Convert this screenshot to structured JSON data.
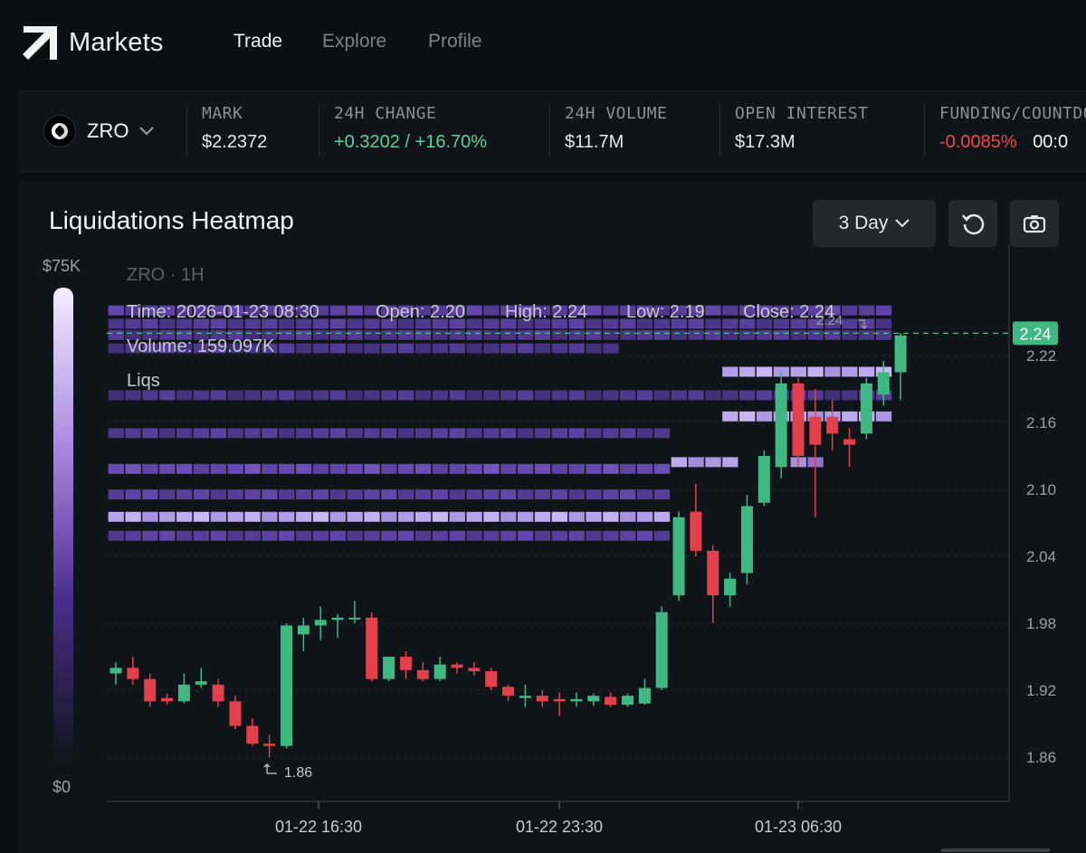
{
  "nav": {
    "brand": "Markets",
    "links": [
      {
        "label": "Trade",
        "active": true
      },
      {
        "label": "Explore",
        "active": false
      },
      {
        "label": "Profile",
        "active": false
      }
    ]
  },
  "ticker": {
    "symbol": "ZRO",
    "stats": [
      {
        "label": "MARK",
        "value": "$2.2372",
        "tone": "neutral"
      },
      {
        "label": "24H CHANGE",
        "value": "+0.3202 / +16.70%",
        "tone": "green"
      },
      {
        "label": "24H VOLUME",
        "value": "$11.7M",
        "tone": "neutral"
      },
      {
        "label": "OPEN INTEREST",
        "value": "$17.3M",
        "tone": "neutral"
      },
      {
        "label": "FUNDING/COUNTDOWN",
        "value": "-0.0085%",
        "value2": "00:0",
        "tone": "red"
      }
    ]
  },
  "panel": {
    "title": "Liquidations Heatmap",
    "range": "3 Day",
    "buttons": [
      "reset-icon",
      "camera-icon"
    ]
  },
  "overlay": {
    "symbol": "ZRO · 1H",
    "time": "Time: 2026-01-23 08:30",
    "open": "Open: 2.20",
    "high": "High: 2.24",
    "low": "Low: 2.19",
    "close": "Close: 2.24",
    "volume": "Volume: 159.097K",
    "liqs": "Liqs"
  },
  "colorbar": {
    "max_label": "$75K",
    "min_label": "$0"
  },
  "colors": {
    "bg": "#0e1417",
    "up": "#3fb884",
    "down": "#e2404c",
    "heat_low": "#2b1f57",
    "heat_high": "#d9c7ff",
    "price_line": "#5fcf9a"
  },
  "chart_data": {
    "type": "heatmap",
    "title": "Liquidations Heatmap",
    "ylim": [
      1.82,
      2.3
    ],
    "yticks": [
      "2.22",
      "2.16",
      "2.10",
      "2.04",
      "1.98",
      "1.92",
      "1.86"
    ],
    "xticks": [
      "01-22 16:30",
      "01-22 23:30",
      "01-23 06:30"
    ],
    "current_price": "2.24",
    "high_marker": "2.24",
    "low_marker": "1.86",
    "candles": [
      {
        "o": 1.935,
        "h": 1.945,
        "l": 1.925,
        "c": 1.94
      },
      {
        "o": 1.94,
        "h": 1.95,
        "l": 1.925,
        "c": 1.93
      },
      {
        "o": 1.93,
        "h": 1.935,
        "l": 1.905,
        "c": 1.91
      },
      {
        "o": 1.913,
        "h": 1.917,
        "l": 1.907,
        "c": 1.91
      },
      {
        "o": 1.91,
        "h": 1.935,
        "l": 1.908,
        "c": 1.925
      },
      {
        "o": 1.925,
        "h": 1.94,
        "l": 1.922,
        "c": 1.928
      },
      {
        "o": 1.925,
        "h": 1.93,
        "l": 1.905,
        "c": 1.91
      },
      {
        "o": 1.91,
        "h": 1.915,
        "l": 1.885,
        "c": 1.888
      },
      {
        "o": 1.888,
        "h": 1.895,
        "l": 1.87,
        "c": 1.872
      },
      {
        "o": 1.872,
        "h": 1.88,
        "l": 1.86,
        "c": 1.87
      },
      {
        "o": 1.87,
        "h": 1.98,
        "l": 1.868,
        "c": 1.978
      },
      {
        "o": 1.97,
        "h": 1.985,
        "l": 1.955,
        "c": 1.978
      },
      {
        "o": 1.978,
        "h": 1.995,
        "l": 1.965,
        "c": 1.983
      },
      {
        "o": 1.983,
        "h": 1.988,
        "l": 1.967,
        "c": 1.985
      },
      {
        "o": 1.985,
        "h": 2.0,
        "l": 1.98,
        "c": 1.985
      },
      {
        "o": 1.985,
        "h": 1.99,
        "l": 1.928,
        "c": 1.93
      },
      {
        "o": 1.93,
        "h": 1.95,
        "l": 1.928,
        "c": 1.95
      },
      {
        "o": 1.95,
        "h": 1.955,
        "l": 1.93,
        "c": 1.938
      },
      {
        "o": 1.938,
        "h": 1.945,
        "l": 1.928,
        "c": 1.93
      },
      {
        "o": 1.93,
        "h": 1.95,
        "l": 1.928,
        "c": 1.943
      },
      {
        "o": 1.943,
        "h": 1.945,
        "l": 1.935,
        "c": 1.94
      },
      {
        "o": 1.94,
        "h": 1.945,
        "l": 1.933,
        "c": 1.937
      },
      {
        "o": 1.937,
        "h": 1.94,
        "l": 1.92,
        "c": 1.923
      },
      {
        "o": 1.923,
        "h": 1.925,
        "l": 1.91,
        "c": 1.915
      },
      {
        "o": 1.913,
        "h": 1.925,
        "l": 1.905,
        "c": 1.915
      },
      {
        "o": 1.915,
        "h": 1.92,
        "l": 1.905,
        "c": 1.91
      },
      {
        "o": 1.912,
        "h": 1.918,
        "l": 1.897,
        "c": 1.91
      },
      {
        "o": 1.91,
        "h": 1.918,
        "l": 1.905,
        "c": 1.912
      },
      {
        "o": 1.91,
        "h": 1.917,
        "l": 1.906,
        "c": 1.915
      },
      {
        "o": 1.914,
        "h": 1.918,
        "l": 1.905,
        "c": 1.907
      },
      {
        "o": 1.907,
        "h": 1.917,
        "l": 1.905,
        "c": 1.915
      },
      {
        "o": 1.908,
        "h": 1.93,
        "l": 1.907,
        "c": 1.922
      },
      {
        "o": 1.922,
        "h": 1.995,
        "l": 1.92,
        "c": 1.99
      },
      {
        "o": 2.005,
        "h": 2.08,
        "l": 2.0,
        "c": 2.075
      },
      {
        "o": 2.08,
        "h": 2.105,
        "l": 2.04,
        "c": 2.045
      },
      {
        "o": 2.045,
        "h": 2.05,
        "l": 1.98,
        "c": 2.005
      },
      {
        "o": 2.005,
        "h": 2.025,
        "l": 1.995,
        "c": 2.02
      },
      {
        "o": 2.025,
        "h": 2.095,
        "l": 2.015,
        "c": 2.085
      },
      {
        "o": 2.088,
        "h": 2.135,
        "l": 2.085,
        "c": 2.13
      },
      {
        "o": 2.12,
        "h": 2.205,
        "l": 2.11,
        "c": 2.195
      },
      {
        "o": 2.195,
        "h": 2.2,
        "l": 2.12,
        "c": 2.13
      },
      {
        "o": 2.165,
        "h": 2.19,
        "l": 2.075,
        "c": 2.14
      },
      {
        "o": 2.165,
        "h": 2.18,
        "l": 2.135,
        "c": 2.15
      },
      {
        "o": 2.145,
        "h": 2.155,
        "l": 2.12,
        "c": 2.14
      },
      {
        "o": 2.15,
        "h": 2.2,
        "l": 2.145,
        "c": 2.195
      },
      {
        "o": 2.185,
        "h": 2.215,
        "l": 2.175,
        "c": 2.205
      },
      {
        "o": 2.205,
        "h": 2.24,
        "l": 2.18,
        "c": 2.238
      }
    ],
    "liquidation_bands": [
      {
        "y": 2.26,
        "x_from": 0,
        "x_to": 46,
        "intensity": 0.35
      },
      {
        "y": 2.248,
        "x_from": 0,
        "x_to": 46,
        "intensity": 0.3
      },
      {
        "y": 2.238,
        "x_from": 0,
        "x_to": 46,
        "intensity": 0.25
      },
      {
        "y": 2.226,
        "x_from": 0,
        "x_to": 30,
        "intensity": 0.25
      },
      {
        "y": 2.205,
        "x_from": 36,
        "x_to": 46,
        "intensity": 0.85
      },
      {
        "y": 2.184,
        "x_from": 0,
        "x_to": 46,
        "intensity": 0.25
      },
      {
        "y": 2.165,
        "x_from": 36,
        "x_to": 46,
        "intensity": 0.85
      },
      {
        "y": 2.15,
        "x_from": 0,
        "x_to": 33,
        "intensity": 0.3
      },
      {
        "y": 2.124,
        "x_from": 33,
        "x_to": 37,
        "intensity": 0.8
      },
      {
        "y": 2.124,
        "x_from": 40,
        "x_to": 42,
        "intensity": 0.7
      },
      {
        "y": 2.118,
        "x_from": 0,
        "x_to": 33,
        "intensity": 0.45
      },
      {
        "y": 2.095,
        "x_from": 0,
        "x_to": 33,
        "intensity": 0.35
      },
      {
        "y": 2.075,
        "x_from": 0,
        "x_to": 33,
        "intensity": 0.85
      },
      {
        "y": 2.058,
        "x_from": 0,
        "x_to": 33,
        "intensity": 0.35
      }
    ]
  }
}
